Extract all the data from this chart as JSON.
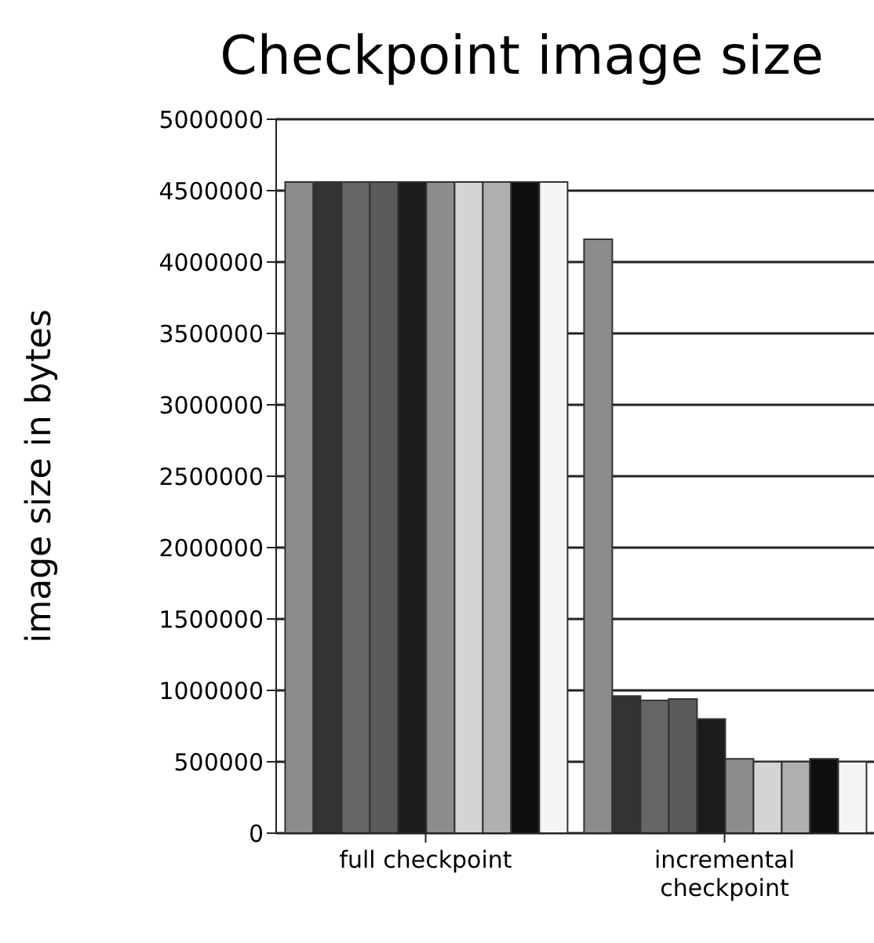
{
  "chart_data": {
    "type": "bar",
    "title": "Checkpoint image size",
    "ylabel": "image size in bytes",
    "categories": [
      "full checkpoint",
      "incremental checkpoint"
    ],
    "series": [
      {
        "color": "#8c8c8c",
        "values": [
          4560000,
          4160000
        ]
      },
      {
        "color": "#333333",
        "values": [
          4560000,
          960000
        ]
      },
      {
        "color": "#666666",
        "values": [
          4560000,
          930000
        ]
      },
      {
        "color": "#5a5a5a",
        "values": [
          4560000,
          940000
        ]
      },
      {
        "color": "#1c1c1c",
        "values": [
          4560000,
          800000
        ]
      },
      {
        "color": "#8c8c8c",
        "values": [
          4560000,
          520000
        ]
      },
      {
        "color": "#d4d4d4",
        "values": [
          4560000,
          500000
        ]
      },
      {
        "color": "#b0b0b0",
        "values": [
          4560000,
          500000
        ]
      },
      {
        "color": "#0f0f0f",
        "values": [
          4560000,
          520000
        ]
      },
      {
        "color": "#f4f4f4",
        "values": [
          4560000,
          500000
        ]
      }
    ],
    "ylim": [
      0,
      5000000
    ],
    "yticks": [
      0,
      500000,
      1000000,
      1500000,
      2000000,
      2500000,
      3000000,
      3500000,
      4000000,
      4500000,
      5000000
    ],
    "grid": "y",
    "legend": false
  }
}
